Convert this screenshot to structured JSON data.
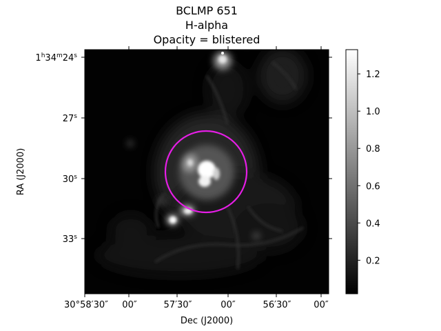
{
  "figure": {
    "title_lines": [
      "BCLMP 651",
      "H-alpha",
      "Opacity = blistered"
    ],
    "xlabel": "Dec (J2000)",
    "ylabel": "RA (J2000)",
    "x_ticks": [
      "30°58′30″",
      "00″",
      "57′30″",
      "00″",
      "56′30″",
      "00″"
    ],
    "y_ticks": [
      {
        "main": "1",
        "sup_h": "h",
        "mid": "34",
        "sup_m": "m",
        "tail": "24",
        "sup_s": "s"
      },
      {
        "main": "",
        "sup_h": "",
        "mid": "",
        "sup_m": "",
        "tail": "27",
        "sup_s": "s"
      },
      {
        "main": "",
        "sup_h": "",
        "mid": "",
        "sup_m": "",
        "tail": "30",
        "sup_s": "s"
      },
      {
        "main": "",
        "sup_h": "",
        "mid": "",
        "sup_m": "",
        "tail": "33",
        "sup_s": "s"
      }
    ],
    "colorbar": {
      "colormap": "grayscale",
      "ticks": [
        "0.2",
        "0.4",
        "0.6",
        "0.8",
        "1.0",
        "1.2"
      ],
      "tick_values": [
        0.2,
        0.4,
        0.6,
        0.8,
        1.0,
        1.2
      ],
      "range": [
        0.02,
        1.33
      ]
    },
    "aperture_circle": {
      "color": "#e61ee6"
    }
  }
}
